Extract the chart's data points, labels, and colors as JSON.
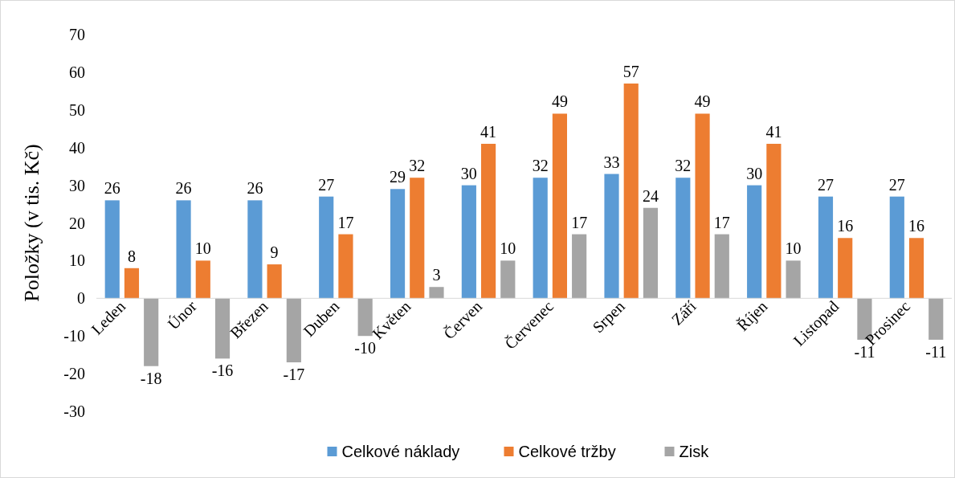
{
  "chart_data": {
    "type": "bar",
    "ylabel": "Položky (v tis. Kč)",
    "categories": [
      "Leden",
      "Únor",
      "Březen",
      "Duben",
      "Květen",
      "Červen",
      "Červenec",
      "Srpen",
      "Září",
      "Říjen",
      "Listopad",
      "Prosinec"
    ],
    "series": [
      {
        "name": "Celkové náklady",
        "color": "#5b9bd5",
        "values": [
          26,
          26,
          26,
          27,
          29,
          30,
          32,
          33,
          32,
          30,
          27,
          27
        ]
      },
      {
        "name": "Celkové tržby",
        "color": "#ed7d31",
        "values": [
          8,
          10,
          9,
          17,
          32,
          41,
          49,
          57,
          49,
          41,
          16,
          16
        ]
      },
      {
        "name": "Zisk",
        "color": "#a5a5a5",
        "values": [
          -18,
          -16,
          -17,
          -10,
          3,
          10,
          17,
          24,
          17,
          10,
          -11,
          -11
        ]
      }
    ],
    "ylim": [
      -30,
      70
    ],
    "yticks": [
      -30,
      -20,
      -10,
      0,
      10,
      20,
      30,
      40,
      50,
      60,
      70
    ],
    "data_labels": true,
    "legend": "bottom",
    "grid": false
  }
}
